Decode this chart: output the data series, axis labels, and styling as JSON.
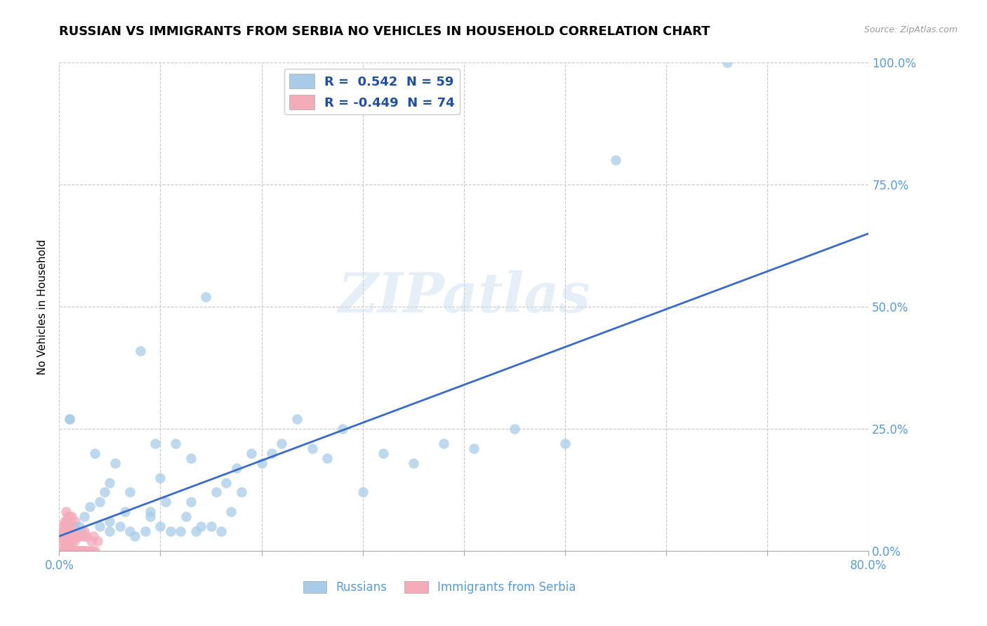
{
  "title": "RUSSIAN VS IMMIGRANTS FROM SERBIA NO VEHICLES IN HOUSEHOLD CORRELATION CHART",
  "source": "Source: ZipAtlas.com",
  "ylabel": "No Vehicles in Household",
  "watermark": "ZIPatlas",
  "russian_color": "#A8CBE8",
  "serbia_color": "#F4ABBA",
  "trendline_color": "#3A6BC4",
  "background_color": "#FFFFFF",
  "grid_color": "#C8C8C8",
  "tick_color": "#5B9BD5",
  "title_fontsize": 13,
  "axis_label_fontsize": 11,
  "tick_fontsize": 12,
  "xmin": 0.0,
  "xmax": 0.8,
  "ymin": 0.0,
  "ymax": 1.0,
  "trendline_x0": 0.0,
  "trendline_y0": 0.03,
  "trendline_x1": 0.8,
  "trendline_y1": 0.65,
  "russian_x": [
    0.01,
    0.01,
    0.02,
    0.025,
    0.03,
    0.035,
    0.04,
    0.04,
    0.045,
    0.05,
    0.05,
    0.05,
    0.055,
    0.06,
    0.065,
    0.07,
    0.07,
    0.075,
    0.08,
    0.085,
    0.09,
    0.09,
    0.095,
    0.1,
    0.1,
    0.105,
    0.11,
    0.115,
    0.12,
    0.125,
    0.13,
    0.13,
    0.135,
    0.14,
    0.145,
    0.15,
    0.155,
    0.16,
    0.165,
    0.17,
    0.175,
    0.18,
    0.19,
    0.2,
    0.21,
    0.22,
    0.235,
    0.25,
    0.265,
    0.28,
    0.3,
    0.32,
    0.35,
    0.38,
    0.41,
    0.45,
    0.5,
    0.55,
    0.66
  ],
  "russian_y": [
    0.27,
    0.27,
    0.05,
    0.07,
    0.09,
    0.2,
    0.05,
    0.1,
    0.12,
    0.04,
    0.06,
    0.14,
    0.18,
    0.05,
    0.08,
    0.04,
    0.12,
    0.03,
    0.41,
    0.04,
    0.08,
    0.07,
    0.22,
    0.05,
    0.15,
    0.1,
    0.04,
    0.22,
    0.04,
    0.07,
    0.1,
    0.19,
    0.04,
    0.05,
    0.52,
    0.05,
    0.12,
    0.04,
    0.14,
    0.08,
    0.17,
    0.12,
    0.2,
    0.18,
    0.2,
    0.22,
    0.27,
    0.21,
    0.19,
    0.25,
    0.12,
    0.2,
    0.18,
    0.22,
    0.21,
    0.25,
    0.22,
    0.8,
    1.0
  ],
  "serbia_x": [
    0.002,
    0.002,
    0.003,
    0.003,
    0.003,
    0.004,
    0.004,
    0.004,
    0.005,
    0.005,
    0.005,
    0.005,
    0.006,
    0.006,
    0.006,
    0.007,
    0.007,
    0.007,
    0.007,
    0.007,
    0.008,
    0.008,
    0.008,
    0.008,
    0.009,
    0.009,
    0.009,
    0.009,
    0.01,
    0.01,
    0.01,
    0.01,
    0.011,
    0.011,
    0.012,
    0.012,
    0.012,
    0.012,
    0.013,
    0.013,
    0.013,
    0.014,
    0.014,
    0.015,
    0.015,
    0.015,
    0.016,
    0.016,
    0.016,
    0.017,
    0.017,
    0.018,
    0.018,
    0.019,
    0.019,
    0.02,
    0.02,
    0.021,
    0.021,
    0.022,
    0.022,
    0.023,
    0.024,
    0.025,
    0.025,
    0.026,
    0.027,
    0.028,
    0.03,
    0.032,
    0.033,
    0.034,
    0.035,
    0.038
  ],
  "serbia_y": [
    0.0,
    0.02,
    0.0,
    0.03,
    0.05,
    0.0,
    0.02,
    0.04,
    0.0,
    0.02,
    0.04,
    0.06,
    0.0,
    0.02,
    0.05,
    0.0,
    0.02,
    0.04,
    0.06,
    0.08,
    0.0,
    0.02,
    0.04,
    0.07,
    0.0,
    0.02,
    0.04,
    0.06,
    0.0,
    0.02,
    0.04,
    0.07,
    0.0,
    0.03,
    0.0,
    0.02,
    0.04,
    0.07,
    0.0,
    0.03,
    0.05,
    0.0,
    0.03,
    0.0,
    0.02,
    0.05,
    0.0,
    0.03,
    0.06,
    0.0,
    0.04,
    0.0,
    0.03,
    0.0,
    0.04,
    0.0,
    0.03,
    0.0,
    0.04,
    0.0,
    0.04,
    0.0,
    0.03,
    0.0,
    0.04,
    0.0,
    0.03,
    0.0,
    0.0,
    0.02,
    0.0,
    0.03,
    0.0,
    0.02
  ],
  "legend_label_russian": "R =  0.542  N = 59",
  "legend_label_serbia": "R = -0.449  N = 74",
  "bottom_label_russian": "Russians",
  "bottom_label_serbia": "Immigrants from Serbia"
}
